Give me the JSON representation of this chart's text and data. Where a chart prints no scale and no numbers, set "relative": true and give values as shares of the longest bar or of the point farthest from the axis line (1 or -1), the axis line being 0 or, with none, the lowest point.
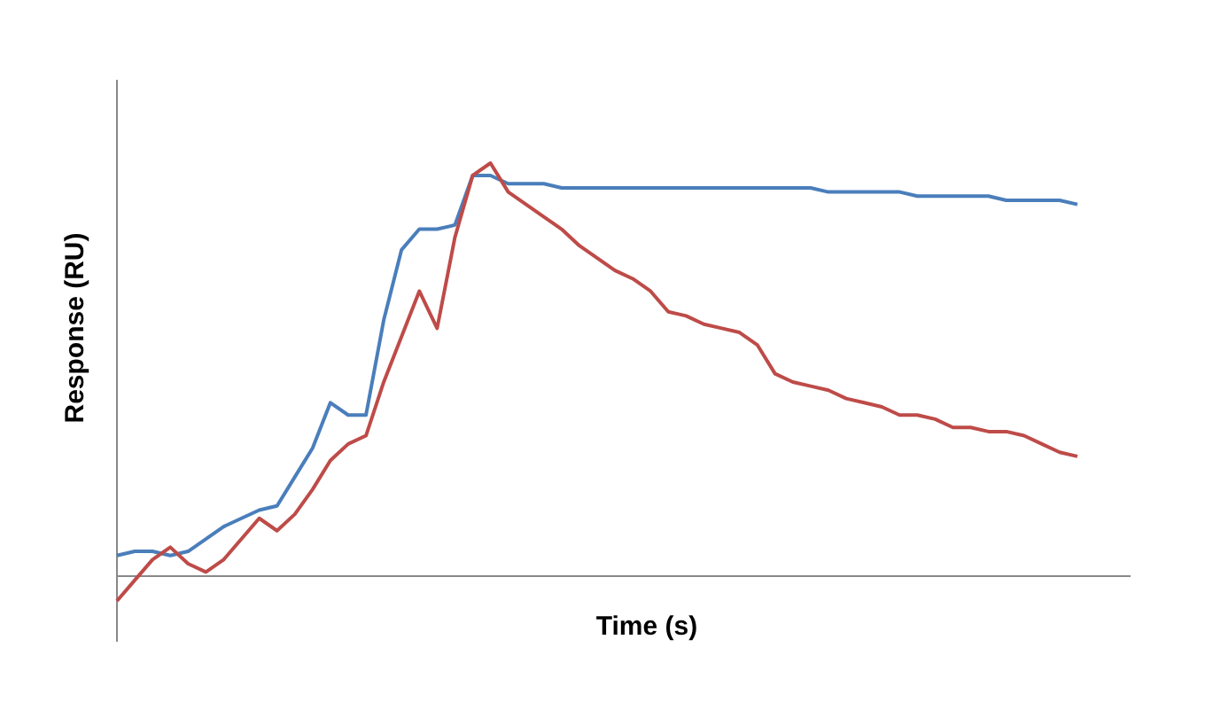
{
  "chart_data": {
    "type": "line",
    "relative": true,
    "xlabel": "Time (s)",
    "ylabel": "Response (RU)",
    "marker": "none",
    "line_style": "solid",
    "categories": [
      null,
      null,
      null,
      null,
      null,
      null,
      null,
      null,
      null,
      null,
      null,
      null,
      null,
      null,
      null,
      null,
      null,
      null,
      null,
      null,
      null,
      null,
      null,
      null,
      null,
      null,
      null,
      null,
      null,
      null,
      null,
      null,
      null,
      null,
      null,
      null,
      null,
      null,
      null,
      null,
      null,
      null,
      null,
      null,
      null,
      null,
      null,
      null,
      null,
      null,
      null,
      null,
      null,
      null,
      null
    ],
    "series": [
      {
        "color": "#4a7ebb",
        "values": [
          0.05,
          0.06,
          0.06,
          0.05,
          0.06,
          0.09,
          0.12,
          0.14,
          0.16,
          0.17,
          0.24,
          0.31,
          0.42,
          0.39,
          0.39,
          0.62,
          0.79,
          0.84,
          0.84,
          0.85,
          0.97,
          0.97,
          0.95,
          0.95,
          0.95,
          0.94,
          0.94,
          0.94,
          0.94,
          0.94,
          0.94,
          0.94,
          0.94,
          0.94,
          0.94,
          0.94,
          0.94,
          0.94,
          0.94,
          0.94,
          0.93,
          0.93,
          0.93,
          0.93,
          0.93,
          0.92,
          0.92,
          0.92,
          0.92,
          0.92,
          0.91,
          0.91,
          0.91,
          0.91,
          0.9
        ]
      },
      {
        "color": "#be4b48",
        "values": [
          -0.06,
          -0.01,
          0.04,
          0.07,
          0.03,
          0.01,
          0.04,
          0.09,
          0.14,
          0.11,
          0.15,
          0.21,
          0.28,
          0.32,
          0.34,
          0.47,
          0.58,
          0.69,
          0.6,
          0.82,
          0.97,
          1.0,
          0.93,
          0.9,
          0.87,
          0.84,
          0.8,
          0.77,
          0.74,
          0.72,
          0.69,
          0.64,
          0.63,
          0.61,
          0.6,
          0.59,
          0.56,
          0.49,
          0.47,
          0.46,
          0.45,
          0.43,
          0.42,
          0.41,
          0.39,
          0.39,
          0.38,
          0.36,
          0.36,
          0.35,
          0.35,
          0.34,
          0.32,
          0.3,
          0.29
        ]
      }
    ]
  }
}
